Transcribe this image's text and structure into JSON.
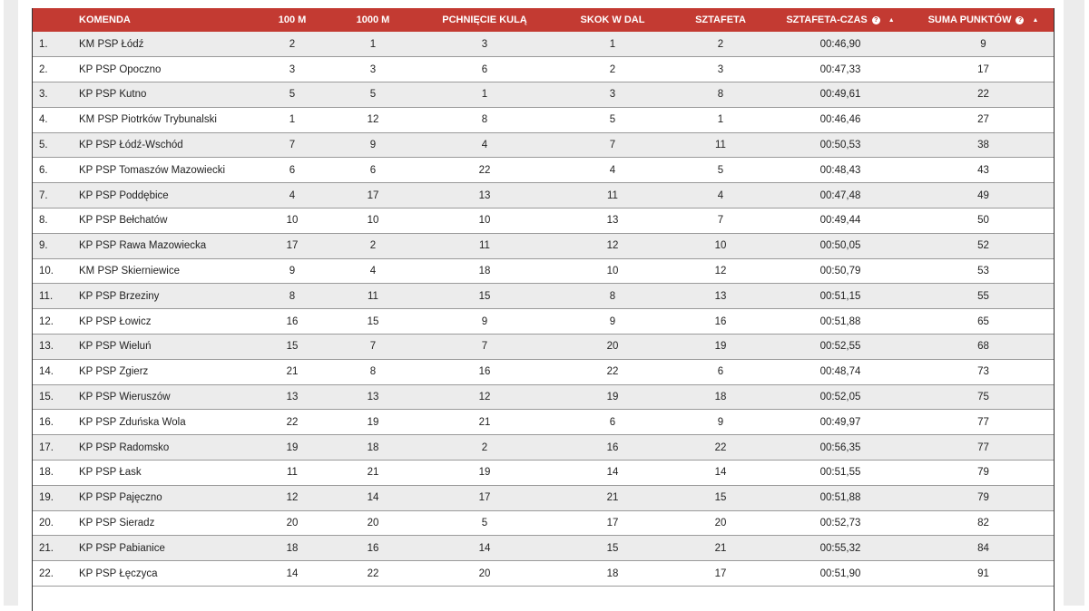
{
  "table": {
    "headers": [
      "",
      "KOMENDA",
      "100 M",
      "1000 M",
      "PCHNIĘCIE KULĄ",
      "SKOK W DAL",
      "SZTAFETA",
      "SZTAFETA-CZAS",
      "SUMA PUNKTÓW"
    ],
    "info_icon": "info-circle-icon",
    "sort_icon": "sort-ascending-icon",
    "rows": [
      [
        "1.",
        "KM PSP Łódź",
        "2",
        "1",
        "3",
        "1",
        "2",
        "00:46,90",
        "9"
      ],
      [
        "2.",
        "KP PSP Opoczno",
        "3",
        "3",
        "6",
        "2",
        "3",
        "00:47,33",
        "17"
      ],
      [
        "3.",
        "KP PSP Kutno",
        "5",
        "5",
        "1",
        "3",
        "8",
        "00:49,61",
        "22"
      ],
      [
        "4.",
        "KM PSP Piotrków Trybunalski",
        "1",
        "12",
        "8",
        "5",
        "1",
        "00:46,46",
        "27"
      ],
      [
        "5.",
        "KP PSP Łódź-Wschód",
        "7",
        "9",
        "4",
        "7",
        "11",
        "00:50,53",
        "38"
      ],
      [
        "6.",
        "KP PSP Tomaszów Mazowiecki",
        "6",
        "6",
        "22",
        "4",
        "5",
        "00:48,43",
        "43"
      ],
      [
        "7.",
        "KP PSP Poddębice",
        "4",
        "17",
        "13",
        "11",
        "4",
        "00:47,48",
        "49"
      ],
      [
        "8.",
        "KP PSP Bełchatów",
        "10",
        "10",
        "10",
        "13",
        "7",
        "00:49,44",
        "50"
      ],
      [
        "9.",
        "KP PSP Rawa Mazowiecka",
        "17",
        "2",
        "11",
        "12",
        "10",
        "00:50,05",
        "52"
      ],
      [
        "10.",
        "KM PSP Skierniewice",
        "9",
        "4",
        "18",
        "10",
        "12",
        "00:50,79",
        "53"
      ],
      [
        "11.",
        "KP PSP Brzeziny",
        "8",
        "11",
        "15",
        "8",
        "13",
        "00:51,15",
        "55"
      ],
      [
        "12.",
        "KP PSP Łowicz",
        "16",
        "15",
        "9",
        "9",
        "16",
        "00:51,88",
        "65"
      ],
      [
        "13.",
        "KP PSP Wieluń",
        "15",
        "7",
        "7",
        "20",
        "19",
        "00:52,55",
        "68"
      ],
      [
        "14.",
        "KP PSP Zgierz",
        "21",
        "8",
        "16",
        "22",
        "6",
        "00:48,74",
        "73"
      ],
      [
        "15.",
        "KP PSP Wieruszów",
        "13",
        "13",
        "12",
        "19",
        "18",
        "00:52,05",
        "75"
      ],
      [
        "16.",
        "KP PSP Zduńska Wola",
        "22",
        "19",
        "21",
        "6",
        "9",
        "00:49,97",
        "77"
      ],
      [
        "17.",
        "KP PSP Radomsko",
        "19",
        "18",
        "2",
        "16",
        "22",
        "00:56,35",
        "77"
      ],
      [
        "18.",
        "KP PSP Łask",
        "11",
        "21",
        "19",
        "14",
        "14",
        "00:51,55",
        "79"
      ],
      [
        "19.",
        "KP PSP Pajęczno",
        "12",
        "14",
        "17",
        "21",
        "15",
        "00:51,88",
        "79"
      ],
      [
        "20.",
        "KP PSP Sieradz",
        "20",
        "20",
        "5",
        "17",
        "20",
        "00:52,73",
        "82"
      ],
      [
        "21.",
        "KP PSP Pabianice",
        "18",
        "16",
        "14",
        "15",
        "21",
        "00:55,32",
        "84"
      ],
      [
        "22.",
        "KP PSP Łęczyca",
        "14",
        "22",
        "20",
        "18",
        "17",
        "00:51,90",
        "91"
      ]
    ]
  },
  "colors": {
    "header_bg": "#c33a32",
    "row_alt": "#ececec"
  }
}
